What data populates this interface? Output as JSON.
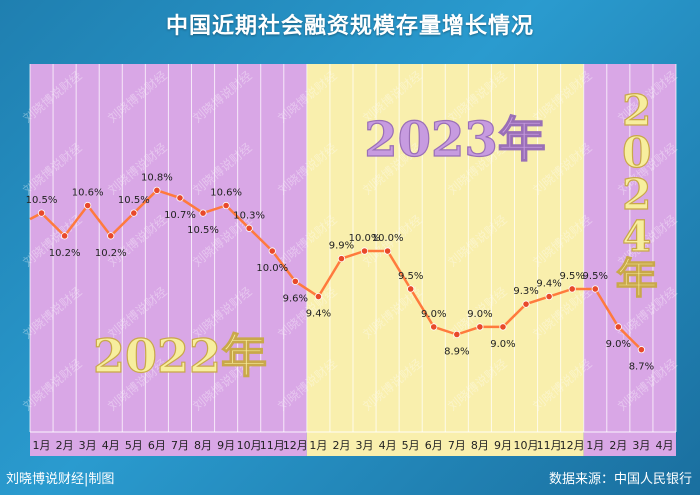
{
  "header": {
    "title": "中国近期社会融资规模存量增长情况"
  },
  "footer": {
    "credit": "刘晓博说财经|制图",
    "source": "数据来源：中国人民银行"
  },
  "watermark": "刘晓博说财经",
  "colors": {
    "band_2022": "#d9a7e6",
    "band_2023": "#f9efad",
    "band_2024": "#d9a7e6",
    "line": "#ff7a3d",
    "point": "#e8492a",
    "year_text_2023": "#c79be0",
    "year_text_2022": "#f7ee9e",
    "year_text_2024": "#f7ee9e"
  },
  "chart_data": {
    "type": "line",
    "title": "中国近期社会融资规模存量增长情况",
    "categories": [
      "1月",
      "2月",
      "3月",
      "4月",
      "5月",
      "6月",
      "7月",
      "8月",
      "9月",
      "10月",
      "11月",
      "12月",
      "1月",
      "2月",
      "3月",
      "4月",
      "5月",
      "6月",
      "7月",
      "8月",
      "9月",
      "10月",
      "11月",
      "12月",
      "1月",
      "2月",
      "3月",
      "4月"
    ],
    "x": [
      "2022-01",
      "2022-02",
      "2022-03",
      "2022-04",
      "2022-05",
      "2022-06",
      "2022-07",
      "2022-08",
      "2022-09",
      "2022-10",
      "2022-11",
      "2022-12",
      "2023-01",
      "2023-02",
      "2023-03",
      "2023-04",
      "2023-05",
      "2023-06",
      "2023-07",
      "2023-08",
      "2023-09",
      "2023-10",
      "2023-11",
      "2023-12",
      "2024-01",
      "2024-02",
      "2024-03"
    ],
    "values": [
      10.5,
      10.2,
      10.6,
      10.2,
      10.5,
      10.8,
      10.7,
      10.5,
      10.6,
      10.3,
      10.0,
      9.6,
      9.4,
      9.9,
      10.0,
      10.0,
      9.5,
      9.0,
      8.9,
      9.0,
      9.0,
      9.3,
      9.4,
      9.5,
      9.5,
      9.0,
      8.7
    ],
    "data_labels": [
      "10.5%",
      "10.2%",
      "10.6%",
      "10.2%",
      "10.5%",
      "10.8%",
      "10.7%",
      "10.5%",
      "10.6%",
      "10.3%",
      "10.0%",
      "9.6%",
      "9.4%",
      "9.9%",
      "10.0%",
      "10.0%",
      "9.5%",
      "9.0%",
      "8.9%",
      "9.0%",
      "9.0%",
      "9.3%",
      "9.4%",
      "9.5%",
      "9.5%",
      "9.0%",
      "8.7%"
    ],
    "year_bands": [
      {
        "label": "2022年",
        "text": [
          "2022年"
        ]
      },
      {
        "label": "2023年",
        "text": [
          "2023年"
        ]
      },
      {
        "label": "2024年",
        "text": [
          "2",
          "0",
          "2",
          "4",
          "年"
        ]
      }
    ],
    "ylim": [
      8.3,
      11.2
    ],
    "grid": true
  }
}
